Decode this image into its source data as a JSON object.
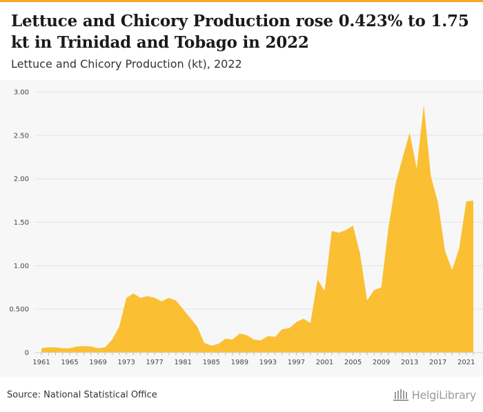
{
  "header": {
    "title": "Lettuce and Chicory Production rose 0.423% to 1.75 kt in Trinidad and Tobago in 2022",
    "subtitle": "Lettuce and Chicory Production (kt), 2022"
  },
  "footer": {
    "source": "Source: National Statistical Office",
    "logo_text": "HelgiLibrary"
  },
  "colors": {
    "accent": "#f5a623",
    "area_fill": "#fbbf33",
    "background": "#f7f7f7"
  },
  "chart_data": {
    "type": "area",
    "title": "Lettuce and Chicory Production rose 0.423% to 1.75 kt in Trinidad and Tobago in 2022",
    "subtitle": "Lettuce and Chicory Production (kt), 2022",
    "xlabel": "",
    "ylabel": "",
    "ylim": [
      0,
      3.0
    ],
    "y_ticks": [
      "0",
      "0.500",
      "1.00",
      "1.50",
      "2.00",
      "2.50",
      "3.00"
    ],
    "x_ticks": [
      "1961",
      "1965",
      "1969",
      "1973",
      "1977",
      "1981",
      "1985",
      "1989",
      "1993",
      "1997",
      "2001",
      "2005",
      "2009",
      "2013",
      "2017",
      "2021"
    ],
    "grid": true,
    "legend": "none",
    "series": [
      {
        "x": [
          1961,
          1962,
          1963,
          1964,
          1965,
          1966,
          1967,
          1968,
          1969,
          1970,
          1971,
          1972,
          1973,
          1974,
          1975,
          1976,
          1977,
          1978,
          1979,
          1980,
          1981,
          1982,
          1983,
          1984,
          1985,
          1986,
          1987,
          1988,
          1989,
          1990,
          1991,
          1992,
          1993,
          1994,
          1995,
          1996,
          1997,
          1998,
          1999,
          2000,
          2001,
          2002,
          2003,
          2004,
          2005,
          2006,
          2007,
          2008,
          2009,
          2010,
          2011,
          2012,
          2013,
          2014,
          2015,
          2016,
          2017,
          2018,
          2019,
          2020,
          2021,
          2022
        ],
        "values": [
          0.05,
          0.06,
          0.06,
          0.05,
          0.05,
          0.07,
          0.075,
          0.07,
          0.05,
          0.06,
          0.15,
          0.3,
          0.63,
          0.68,
          0.63,
          0.65,
          0.63,
          0.59,
          0.63,
          0.6,
          0.5,
          0.4,
          0.3,
          0.11,
          0.08,
          0.1,
          0.16,
          0.15,
          0.22,
          0.2,
          0.15,
          0.14,
          0.19,
          0.18,
          0.27,
          0.28,
          0.35,
          0.39,
          0.34,
          0.84,
          0.71,
          1.4,
          1.38,
          1.41,
          1.46,
          1.14,
          0.6,
          0.72,
          0.75,
          1.43,
          1.94,
          2.24,
          2.53,
          2.12,
          2.85,
          2.03,
          1.73,
          1.17,
          0.95,
          1.2,
          1.74,
          1.75
        ]
      }
    ]
  }
}
